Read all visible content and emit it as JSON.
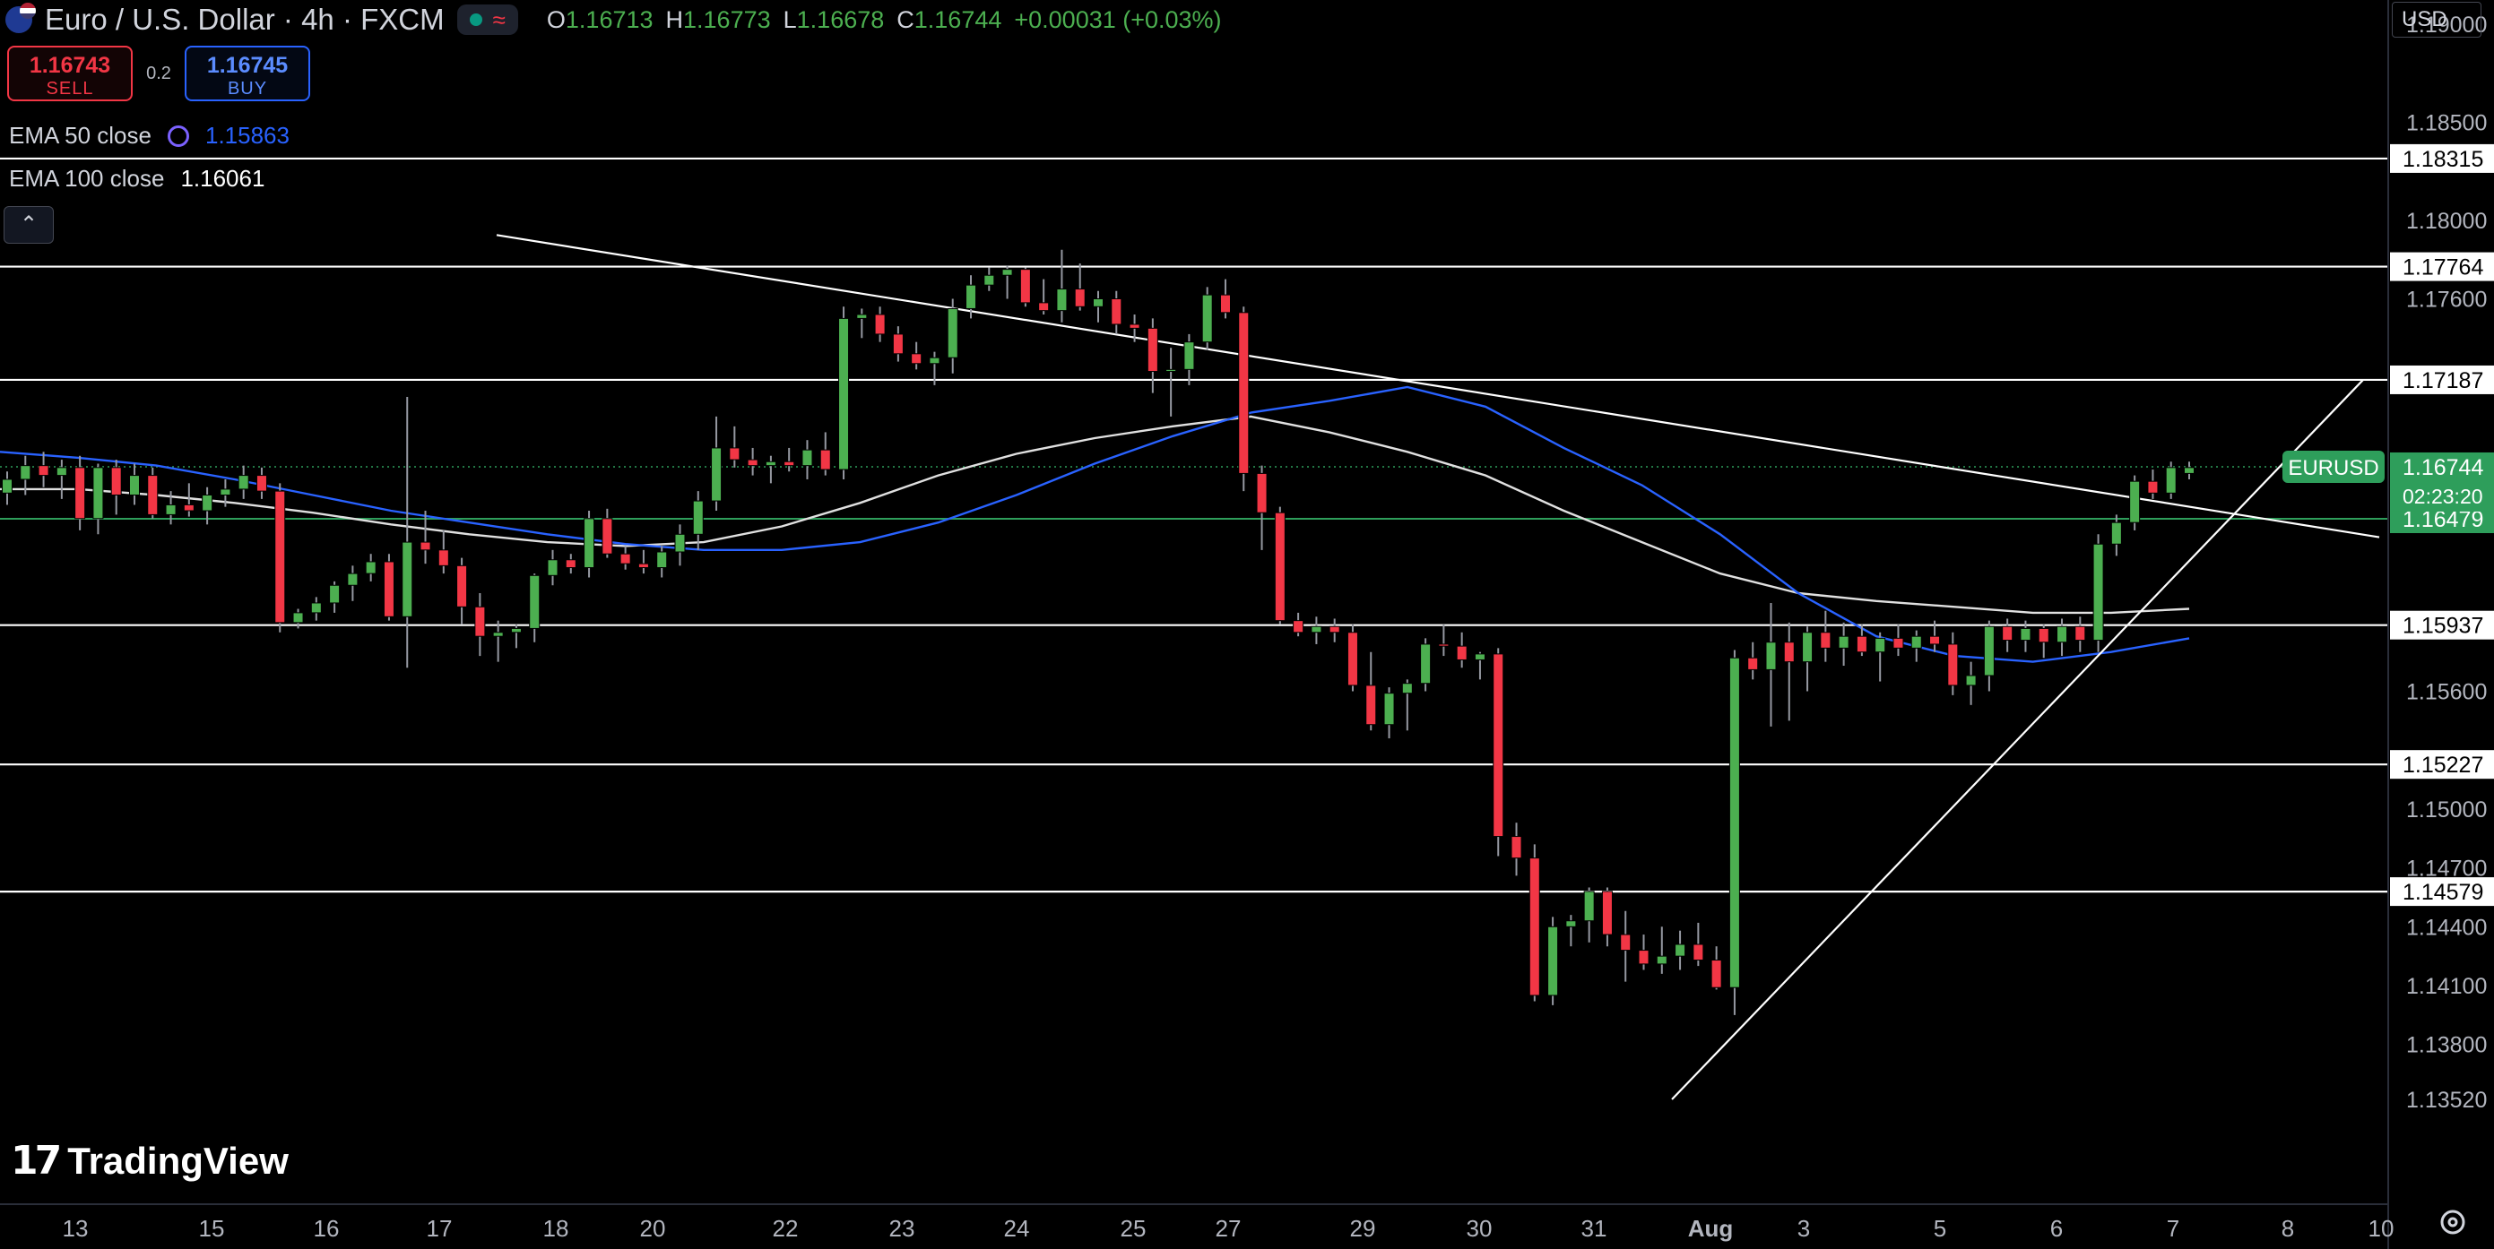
{
  "header": {
    "title": "Euro / U.S. Dollar · 4h · FXCM",
    "ohlc": [
      {
        "k": "O",
        "v": "1.16713"
      },
      {
        "k": "H",
        "v": "1.16773"
      },
      {
        "k": "L",
        "v": "1.16678"
      },
      {
        "k": "C",
        "v": "1.16744"
      }
    ],
    "change": "+0.00031 (+0.03%)"
  },
  "trade": {
    "sell_price": "1.16743",
    "sell_label": "SELL",
    "spread": "0.2",
    "buy_price": "1.16745",
    "buy_label": "BUY"
  },
  "indicators": {
    "ema50_label": "EMA 50 close",
    "ema50_value": "1.15863",
    "ema100_label": "EMA 100 close",
    "ema100_value": "1.16061"
  },
  "currency": "USD",
  "branding": {
    "name": "TradingView"
  },
  "colors": {
    "up": "#4caf50",
    "down": "#f23645",
    "ema50": "#2962ff",
    "ema100": "#e0e0e0",
    "level": "#ffffff"
  },
  "chart_data": {
    "type": "candlestick",
    "symbol": "EURUSD",
    "interval": "4h",
    "ylim": [
      1.1352,
      1.1922
    ],
    "y_ticks": [
      "1.19000",
      "1.18500",
      "1.18000",
      "1.17600",
      "1.15600",
      "1.15000",
      "1.14700",
      "1.14400",
      "1.14100",
      "1.13800",
      "1.13520"
    ],
    "x_ticks": [
      "13",
      "15",
      "16",
      "17",
      "18",
      "20",
      "22",
      "23",
      "24",
      "25",
      "27",
      "29",
      "30",
      "31",
      "Aug",
      "3",
      "5",
      "6",
      "7",
      "8",
      "10"
    ],
    "horizontal_levels": [
      "1.18315",
      "1.17764",
      "1.17187",
      "1.15937",
      "1.15227",
      "1.14579"
    ],
    "green_level": "1.16479",
    "last_price": {
      "symbol": "EURUSD",
      "price": "1.16744",
      "countdown": "02:23:20"
    },
    "candles": [
      [
        1.1661,
        1.1672,
        1.1655,
        1.1668
      ],
      [
        1.1668,
        1.168,
        1.166,
        1.1675
      ],
      [
        1.1675,
        1.1682,
        1.1664,
        1.167
      ],
      [
        1.167,
        1.1678,
        1.1658,
        1.1674
      ],
      [
        1.1674,
        1.168,
        1.1642,
        1.1648
      ],
      [
        1.1648,
        1.1676,
        1.164,
        1.1674
      ],
      [
        1.1674,
        1.1678,
        1.165,
        1.166
      ],
      [
        1.166,
        1.1676,
        1.1655,
        1.167
      ],
      [
        1.167,
        1.1674,
        1.1648,
        1.165
      ],
      [
        1.165,
        1.1662,
        1.1645,
        1.1655
      ],
      [
        1.1655,
        1.1666,
        1.1649,
        1.1652
      ],
      [
        1.1652,
        1.1664,
        1.1645,
        1.166
      ],
      [
        1.166,
        1.1668,
        1.1654,
        1.1663
      ],
      [
        1.1663,
        1.1675,
        1.1658,
        1.167
      ],
      [
        1.167,
        1.1674,
        1.1658,
        1.1662
      ],
      [
        1.1662,
        1.1666,
        1.159,
        1.1595
      ],
      [
        1.1595,
        1.1602,
        1.1592,
        1.16
      ],
      [
        1.16,
        1.1608,
        1.1596,
        1.1605
      ],
      [
        1.1605,
        1.1616,
        1.16,
        1.1614
      ],
      [
        1.1614,
        1.1624,
        1.1606,
        1.162
      ],
      [
        1.162,
        1.163,
        1.1616,
        1.1626
      ],
      [
        1.1626,
        1.163,
        1.1596,
        1.1598
      ],
      [
        1.1598,
        1.171,
        1.1572,
        1.1636
      ],
      [
        1.1636,
        1.1652,
        1.1625,
        1.1632
      ],
      [
        1.1632,
        1.1642,
        1.162,
        1.1624
      ],
      [
        1.1624,
        1.1628,
        1.1594,
        1.1603
      ],
      [
        1.1603,
        1.161,
        1.1578,
        1.1588
      ],
      [
        1.1588,
        1.1596,
        1.1575,
        1.159
      ],
      [
        1.159,
        1.1594,
        1.1582,
        1.1592
      ],
      [
        1.1592,
        1.162,
        1.1585,
        1.1619
      ],
      [
        1.1619,
        1.1632,
        1.1614,
        1.1627
      ],
      [
        1.1627,
        1.163,
        1.162,
        1.1623
      ],
      [
        1.1623,
        1.1652,
        1.1618,
        1.1648
      ],
      [
        1.1648,
        1.1653,
        1.1628,
        1.163
      ],
      [
        1.163,
        1.1634,
        1.1622,
        1.1625
      ],
      [
        1.1625,
        1.1632,
        1.162,
        1.1623
      ],
      [
        1.1623,
        1.1634,
        1.1618,
        1.1631
      ],
      [
        1.1631,
        1.1645,
        1.1624,
        1.164
      ],
      [
        1.164,
        1.1662,
        1.1632,
        1.1657
      ],
      [
        1.1657,
        1.17,
        1.1652,
        1.1684
      ],
      [
        1.1684,
        1.1695,
        1.1674,
        1.1678
      ],
      [
        1.1678,
        1.1684,
        1.167,
        1.1675
      ],
      [
        1.1675,
        1.168,
        1.1666,
        1.1677
      ],
      [
        1.1677,
        1.1684,
        1.1672,
        1.1675
      ],
      [
        1.1675,
        1.1688,
        1.1668,
        1.1683
      ],
      [
        1.1683,
        1.1692,
        1.167,
        1.1673
      ],
      [
        1.1673,
        1.1756,
        1.1668,
        1.175
      ],
      [
        1.175,
        1.1755,
        1.174,
        1.1752
      ],
      [
        1.1752,
        1.1756,
        1.1738,
        1.1742
      ],
      [
        1.1742,
        1.1746,
        1.1728,
        1.1732
      ],
      [
        1.1732,
        1.1738,
        1.1724,
        1.1727
      ],
      [
        1.1727,
        1.1733,
        1.1716,
        1.173
      ],
      [
        1.173,
        1.176,
        1.1722,
        1.1755
      ],
      [
        1.1755,
        1.1772,
        1.175,
        1.1767
      ],
      [
        1.1767,
        1.1776,
        1.1764,
        1.1772
      ],
      [
        1.1772,
        1.1777,
        1.176,
        1.1775
      ],
      [
        1.1775,
        1.1776,
        1.1756,
        1.1758
      ],
      [
        1.1758,
        1.177,
        1.1752,
        1.1754
      ],
      [
        1.1754,
        1.1785,
        1.1748,
        1.1765
      ],
      [
        1.1765,
        1.1778,
        1.1754,
        1.1756
      ],
      [
        1.1756,
        1.1764,
        1.1748,
        1.176
      ],
      [
        1.176,
        1.1764,
        1.1742,
        1.1747
      ],
      [
        1.1747,
        1.1752,
        1.1738,
        1.1745
      ],
      [
        1.1745,
        1.175,
        1.1712,
        1.1723
      ],
      [
        1.1723,
        1.1735,
        1.17,
        1.1724
      ],
      [
        1.1724,
        1.1742,
        1.1716,
        1.1738
      ],
      [
        1.1738,
        1.1766,
        1.1734,
        1.1762
      ],
      [
        1.1762,
        1.177,
        1.175,
        1.1753
      ],
      [
        1.1753,
        1.1756,
        1.1662,
        1.1671
      ],
      [
        1.1671,
        1.1675,
        1.1632,
        1.1651
      ],
      [
        1.1651,
        1.1654,
        1.1594,
        1.1596
      ],
      [
        1.1596,
        1.16,
        1.1588,
        1.159
      ],
      [
        1.159,
        1.1598,
        1.1584,
        1.1593
      ],
      [
        1.1593,
        1.1597,
        1.1585,
        1.159
      ],
      [
        1.159,
        1.1594,
        1.156,
        1.1563
      ],
      [
        1.1563,
        1.158,
        1.154,
        1.1543
      ],
      [
        1.1543,
        1.1562,
        1.1536,
        1.1559
      ],
      [
        1.1559,
        1.1566,
        1.154,
        1.1564
      ],
      [
        1.1564,
        1.1587,
        1.156,
        1.1584
      ],
      [
        1.1584,
        1.1594,
        1.1578,
        1.1583
      ],
      [
        1.1583,
        1.159,
        1.1572,
        1.1576
      ],
      [
        1.1576,
        1.158,
        1.1566,
        1.1579
      ],
      [
        1.1579,
        1.1582,
        1.1476,
        1.1486
      ],
      [
        1.1486,
        1.1493,
        1.1466,
        1.1475
      ],
      [
        1.1475,
        1.1482,
        1.1402,
        1.1405
      ],
      [
        1.1405,
        1.1445,
        1.14,
        1.144
      ],
      [
        1.144,
        1.1446,
        1.143,
        1.1443
      ],
      [
        1.1443,
        1.146,
        1.1432,
        1.1458
      ],
      [
        1.1458,
        1.146,
        1.143,
        1.1436
      ],
      [
        1.1436,
        1.1448,
        1.1412,
        1.1428
      ],
      [
        1.1428,
        1.1436,
        1.1418,
        1.1421
      ],
      [
        1.1421,
        1.144,
        1.1416,
        1.1425
      ],
      [
        1.1425,
        1.1438,
        1.1418,
        1.1431
      ],
      [
        1.1431,
        1.1442,
        1.142,
        1.1423
      ],
      [
        1.1423,
        1.143,
        1.1408,
        1.1409
      ],
      [
        1.1409,
        1.1581,
        1.1395,
        1.1577
      ],
      [
        1.1577,
        1.1585,
        1.1566,
        1.1571
      ],
      [
        1.1571,
        1.1605,
        1.1542,
        1.1585
      ],
      [
        1.1585,
        1.1595,
        1.1545,
        1.1575
      ],
      [
        1.1575,
        1.1593,
        1.156,
        1.159
      ],
      [
        1.159,
        1.1601,
        1.1575,
        1.1582
      ],
      [
        1.1582,
        1.1595,
        1.1573,
        1.1588
      ],
      [
        1.1588,
        1.1594,
        1.1578,
        1.158
      ],
      [
        1.158,
        1.159,
        1.1565,
        1.1587
      ],
      [
        1.1587,
        1.1594,
        1.1578,
        1.1582
      ],
      [
        1.1582,
        1.1591,
        1.1575,
        1.1588
      ],
      [
        1.1588,
        1.1596,
        1.158,
        1.1584
      ],
      [
        1.1584,
        1.159,
        1.1558,
        1.1563
      ],
      [
        1.1563,
        1.1575,
        1.1553,
        1.1568
      ],
      [
        1.1568,
        1.1596,
        1.156,
        1.1593
      ],
      [
        1.1593,
        1.1597,
        1.158,
        1.1586
      ],
      [
        1.1586,
        1.1596,
        1.158,
        1.1592
      ],
      [
        1.1592,
        1.1594,
        1.1577,
        1.1585
      ],
      [
        1.1585,
        1.1597,
        1.1578,
        1.1593
      ],
      [
        1.1593,
        1.1598,
        1.158,
        1.1586
      ],
      [
        1.1586,
        1.164,
        1.158,
        1.1635
      ],
      [
        1.1635,
        1.165,
        1.1629,
        1.1646
      ],
      [
        1.1646,
        1.167,
        1.1642,
        1.1667
      ],
      [
        1.1667,
        1.1673,
        1.1658,
        1.1661
      ],
      [
        1.1661,
        1.1677,
        1.1658,
        1.1674
      ],
      [
        1.1671,
        1.1677,
        1.1668,
        1.1674
      ]
    ],
    "ema50": [
      1.1682,
      1.1679,
      1.1675,
      1.1668,
      1.166,
      1.1652,
      1.1646,
      1.164,
      1.1635,
      1.1632,
      1.1632,
      1.1636,
      1.1646,
      1.166,
      1.1676,
      1.169,
      1.1702,
      1.1708,
      1.1715,
      1.1705,
      1.1684,
      1.1665,
      1.164,
      1.161,
      1.1588,
      1.1578,
      1.1575,
      1.158,
      1.1587
    ],
    "ema100": [
      1.1663,
      1.1663,
      1.166,
      1.1656,
      1.1651,
      1.1645,
      1.164,
      1.1636,
      1.1634,
      1.1636,
      1.1644,
      1.1656,
      1.167,
      1.1681,
      1.1689,
      1.1695,
      1.17,
      1.1692,
      1.1682,
      1.167,
      1.1652,
      1.1636,
      1.162,
      1.161,
      1.1606,
      1.1603,
      1.16,
      1.16,
      1.1602
    ],
    "trendlines": [
      {
        "name": "descending-resistance",
        "from": [
          554,
          1.17925
        ],
        "to": [
          2654,
          1.16385
        ]
      },
      {
        "name": "ascending-support",
        "from": [
          1865,
          1.1352
        ],
        "to": [
          2636,
          1.17187
        ]
      }
    ]
  }
}
